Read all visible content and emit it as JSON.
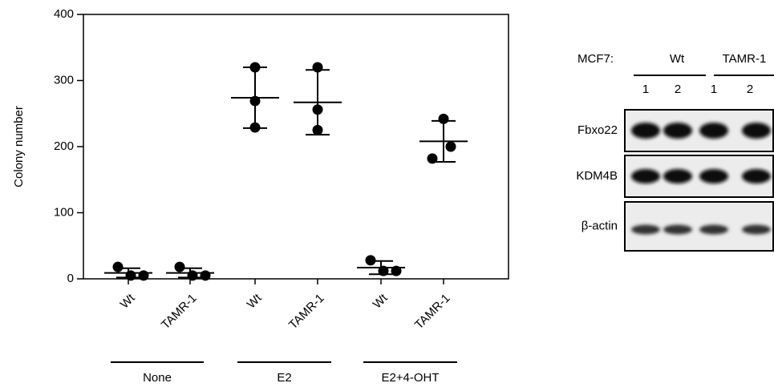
{
  "chart_data": {
    "type": "dot",
    "y_label": "Colony number",
    "ylim": [
      0,
      400
    ],
    "yticks": [
      0,
      100,
      200,
      300,
      400
    ],
    "categories": [
      "Wt",
      "TAMR-1",
      "Wt",
      "TAMR-1",
      "Wt",
      "TAMR-1"
    ],
    "groups": [
      "None",
      "E2",
      "E2+4-OHT"
    ],
    "points": [
      [
        18,
        5,
        5
      ],
      [
        18,
        5,
        5
      ],
      [
        320,
        269,
        229
      ],
      [
        320,
        256,
        225
      ],
      [
        28,
        12,
        12
      ],
      [
        242,
        182,
        200
      ]
    ],
    "means": [
      9,
      9,
      274,
      267,
      17,
      208
    ],
    "sd": [
      7,
      7,
      46,
      49,
      10,
      31
    ],
    "color": "#000000"
  },
  "blot": {
    "cell_label": "MCF7:",
    "groups": [
      "Wt",
      "TAMR-1"
    ],
    "lanes": [
      "1",
      "2",
      "1",
      "2"
    ],
    "rows": [
      "Fbxo22",
      "KDM4B",
      "β-actin"
    ]
  }
}
